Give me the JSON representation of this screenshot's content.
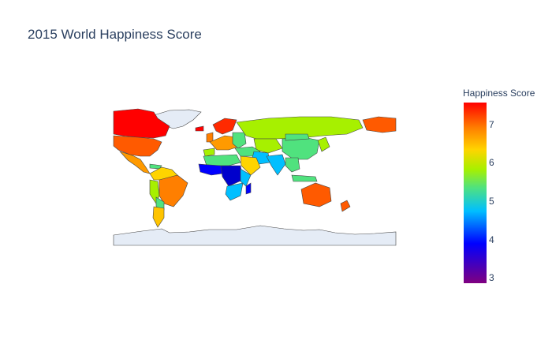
{
  "title": "2015 World Happiness Score",
  "colorbar": {
    "title": "Happiness Score",
    "ticks": [
      "7",
      "6",
      "5",
      "4",
      "3"
    ],
    "colors": [
      "#800080",
      "#0000ff",
      "#00bfff",
      "#50e27e",
      "#a7f000",
      "#ffd400",
      "#ff7f00",
      "#ff0000"
    ]
  },
  "map": {
    "projection": "equirectangular",
    "land_color": "#e5ecf6",
    "border_color": "#444444"
  }
}
